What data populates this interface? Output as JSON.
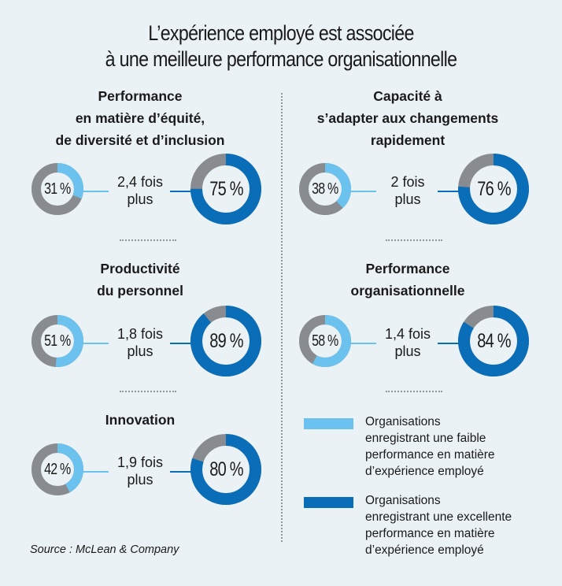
{
  "title": [
    "L’expérience employé est associée",
    "à une meilleure performance organisationnelle"
  ],
  "source": "Source : McLean & Company",
  "colors": {
    "low": "#6cc2ee",
    "high": "#0a6db7",
    "rest": "#888b8f",
    "background": "#ebf2f6"
  },
  "legend": [
    {
      "key": "low",
      "lines": [
        "Organisations",
        "enregistrant une faible",
        "performance en matière",
        "d’expérience employé"
      ]
    },
    {
      "key": "high",
      "lines": [
        "Organisations",
        "enregistrant une excellente",
        "performance en matière",
        "d’expérience employé"
      ]
    }
  ],
  "chart_data": [
    {
      "type": "pie",
      "title_lines": [
        "Performance",
        "en matière d’équité,",
        "de diversité et d’inclusion"
      ],
      "low": {
        "value": 31,
        "label": "31 %"
      },
      "high": {
        "value": 75,
        "label": "75 %"
      },
      "ratio_lines": [
        "2,4 fois",
        "plus"
      ]
    },
    {
      "type": "pie",
      "title_lines": [
        "Capacité à",
        "s’adapter aux changements",
        "rapidement"
      ],
      "low": {
        "value": 38,
        "label": "38 %"
      },
      "high": {
        "value": 76,
        "label": "76 %"
      },
      "ratio_lines": [
        "2 fois",
        "plus"
      ]
    },
    {
      "type": "pie",
      "title_lines": [
        "Productivité",
        "du personnel"
      ],
      "low": {
        "value": 51,
        "label": "51 %"
      },
      "high": {
        "value": 89,
        "label": "89 %"
      },
      "ratio_lines": [
        "1,8 fois",
        "plus"
      ]
    },
    {
      "type": "pie",
      "title_lines": [
        "Performance",
        "organisationnelle"
      ],
      "low": {
        "value": 58,
        "label": "58 %"
      },
      "high": {
        "value": 84,
        "label": "84 %"
      },
      "ratio_lines": [
        "1,4 fois",
        "plus"
      ]
    },
    {
      "type": "pie",
      "title_lines": [
        "Innovation"
      ],
      "low": {
        "value": 42,
        "label": "42 %"
      },
      "high": {
        "value": 80,
        "label": "80 %"
      },
      "ratio_lines": [
        "1,9 fois",
        "plus"
      ]
    }
  ]
}
